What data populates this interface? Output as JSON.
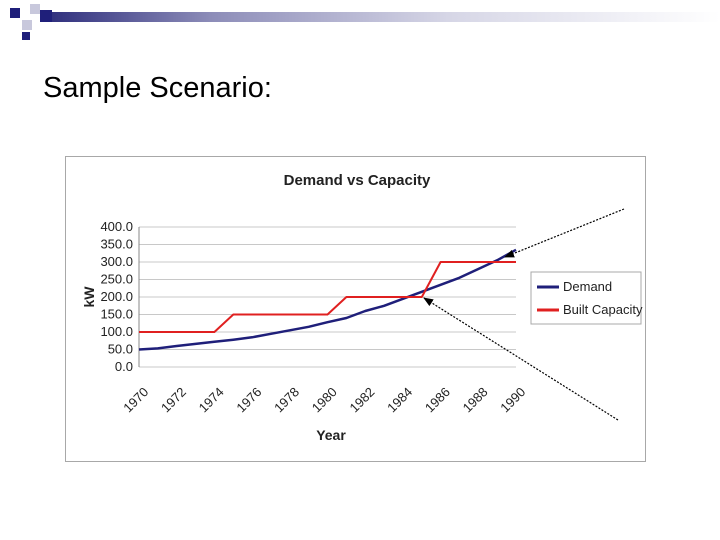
{
  "slide": {
    "title": "Sample Scenario:"
  },
  "colors": {
    "demand": "#1f1f7a",
    "built_capacity": "#e02020",
    "decor_square_dark": "#1f1f7a",
    "decor_square_light": "#c8c8dc",
    "frame_border": "#a8a8a8"
  },
  "chart_data": {
    "type": "line",
    "title": "Demand vs Capacity",
    "xlabel": "Year",
    "ylabel": "kW",
    "ylim": [
      0,
      400
    ],
    "xlim": [
      1970,
      1990
    ],
    "y_ticks": [
      "0.0",
      "50.0",
      "100.0",
      "150.0",
      "200.0",
      "250.0",
      "300.0",
      "350.0",
      "400.0"
    ],
    "x_ticks": [
      "1970",
      "1972",
      "1974",
      "1976",
      "1978",
      "1980",
      "1982",
      "1984",
      "1986",
      "1988",
      "1990"
    ],
    "grid": true,
    "legend_position": "right",
    "series": [
      {
        "name": "Demand",
        "color": "#1f1f7a",
        "x": [
          1970,
          1971,
          1972,
          1973,
          1974,
          1975,
          1976,
          1977,
          1978,
          1979,
          1980,
          1981,
          1982,
          1983,
          1984,
          1985,
          1986,
          1987,
          1988,
          1989,
          1990
        ],
        "values": [
          50,
          53,
          60,
          66,
          72,
          78,
          85,
          95,
          105,
          115,
          128,
          140,
          160,
          175,
          195,
          215,
          235,
          255,
          280,
          305,
          335
        ]
      },
      {
        "name": "Built Capacity",
        "color": "#e02020",
        "x": [
          1970,
          1974,
          1975,
          1980,
          1981,
          1985,
          1986,
          1990
        ],
        "values": [
          100,
          100,
          150,
          150,
          200,
          200,
          300,
          300
        ]
      }
    ]
  }
}
